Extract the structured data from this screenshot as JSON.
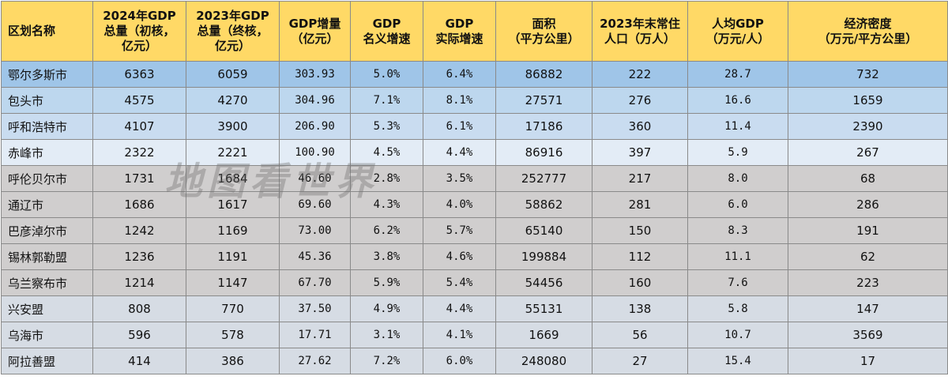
{
  "headers": [
    "区划名称",
    "2024年GDP\n总量（初核，\n亿元）",
    "2023年GDP\n总量（终核，\n亿元）",
    "GDP增量\n（亿元）",
    "GDP\n名义增速",
    "GDP\n实际增速",
    "面积\n（平方公里）",
    "2023年末常住\n人口（万人）",
    "人均GDP\n（万元/人）",
    "经济密度\n（万元/平方公里）"
  ],
  "rows": [
    [
      "鄂尔多斯市",
      "6363",
      "6059",
      "303.93",
      "5.0%",
      "6.4%",
      "86882",
      "222",
      "28.7",
      "732"
    ],
    [
      "包头市",
      "4575",
      "4270",
      "304.96",
      "7.1%",
      "8.1%",
      "27571",
      "276",
      "16.6",
      "1659"
    ],
    [
      "呼和浩特市",
      "4107",
      "3900",
      "206.90",
      "5.3%",
      "6.1%",
      "17186",
      "360",
      "11.4",
      "2390"
    ],
    [
      "赤峰市",
      "2322",
      "2221",
      "100.90",
      "4.5%",
      "4.4%",
      "86916",
      "397",
      "5.9",
      "267"
    ],
    [
      "呼伦贝尔市",
      "1731",
      "1684",
      "46.60",
      "2.8%",
      "3.5%",
      "252777",
      "217",
      "8.0",
      "68"
    ],
    [
      "通辽市",
      "1686",
      "1617",
      "69.60",
      "4.3%",
      "4.0%",
      "58862",
      "281",
      "6.0",
      "286"
    ],
    [
      "巴彦淖尔市",
      "1242",
      "1169",
      "73.00",
      "6.2%",
      "5.7%",
      "65140",
      "150",
      "8.3",
      "191"
    ],
    [
      "锡林郭勒盟",
      "1236",
      "1191",
      "45.36",
      "3.8%",
      "4.6%",
      "199884",
      "112",
      "11.1",
      "62"
    ],
    [
      "乌兰察布市",
      "1214",
      "1147",
      "67.70",
      "5.9%",
      "5.4%",
      "54456",
      "160",
      "7.6",
      "223"
    ],
    [
      "兴安盟",
      "808",
      "770",
      "37.50",
      "4.9%",
      "4.4%",
      "55131",
      "138",
      "5.8",
      "147"
    ],
    [
      "乌海市",
      "596",
      "578",
      "17.71",
      "3.1%",
      "4.1%",
      "1669",
      "56",
      "10.7",
      "3569"
    ],
    [
      "阿拉善盟",
      "414",
      "386",
      "27.62",
      "7.2%",
      "6.0%",
      "248080",
      "27",
      "15.4",
      "17"
    ]
  ],
  "watermark": "地图看世界",
  "colors": {
    "header": "#ffd966",
    "row_top1": "#9fc5e8",
    "row_top2": "#bdd7ee",
    "row_top3": "#c9dcf0",
    "row_top4": "#e3ecf6",
    "row_gray": "#d0cece",
    "row_light": "#d6dce4"
  }
}
